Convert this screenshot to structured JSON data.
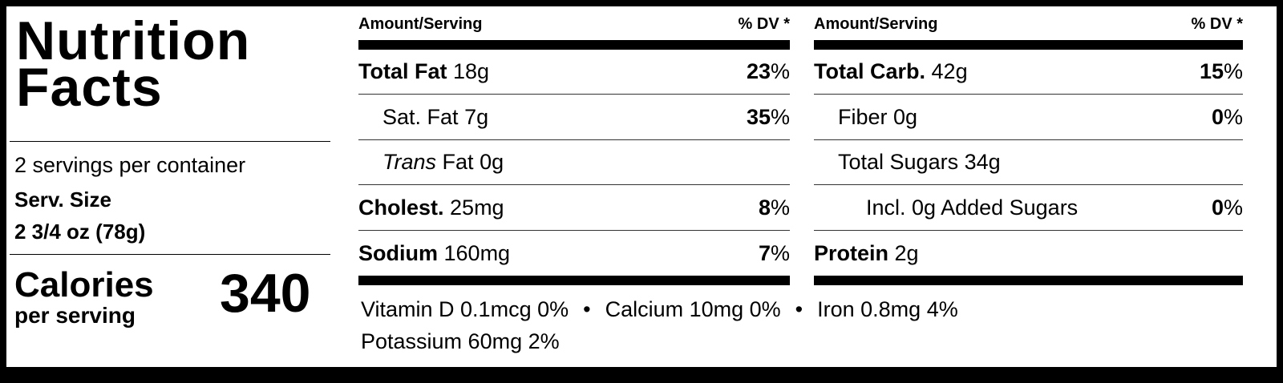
{
  "label": {
    "title": "Nutrition Facts",
    "servings": "2 servings per container",
    "serving_size_label": "Serv. Size",
    "serving_size": "2 3/4 oz (78g)",
    "calories_label": "Calories",
    "calories_sub": "per serving",
    "calories": 340
  },
  "columns": [
    {
      "amount_header": "Amount/Serving",
      "dv_header": "% DV *",
      "rows": [
        {
          "name": "Total Fat",
          "amount": "18g",
          "dv": 23,
          "dv_sign": "%"
        },
        {
          "name": "Sat. Fat",
          "amount": "7g",
          "dv": 35,
          "dv_sign": "%"
        },
        {
          "prefix": "Trans",
          "name": "Fat",
          "amount": "0g"
        },
        {
          "name": "Cholest.",
          "amount": "25mg",
          "dv": 8,
          "dv_sign": "%"
        },
        {
          "name": "Sodium",
          "amount": "160mg",
          "dv": 7,
          "dv_sign": "%"
        }
      ]
    },
    {
      "amount_header": "Amount/Serving",
      "dv_header": "% DV *",
      "rows": [
        {
          "name": "Total Carb.",
          "amount": "42g",
          "dv": 15,
          "dv_sign": "%"
        },
        {
          "name": "Fiber",
          "amount": "0g",
          "dv": 0,
          "dv_sign": "%"
        },
        {
          "name": "Total Sugars",
          "amount": "34g"
        },
        {
          "name": "Incl. 0g Added Sugars",
          "dv": 0,
          "dv_sign": "%"
        },
        {
          "name": "Protein",
          "amount": "2g"
        }
      ]
    }
  ],
  "footer": {
    "items": [
      "Vitamin D 0.1mcg 0%",
      "Calcium 10mg 0%",
      "Iron 0.8mg 4%",
      "Potassium 60mg 2%"
    ],
    "separator": "•"
  }
}
